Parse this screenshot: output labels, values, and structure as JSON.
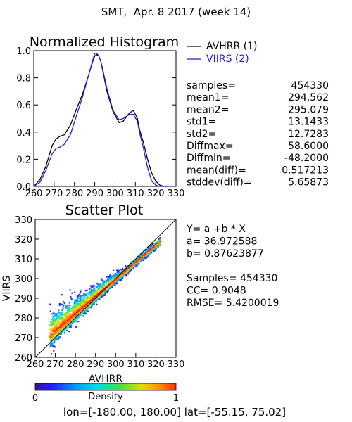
{
  "page": {
    "title": "SMT,  Apr. 8 2017 (week 14)",
    "region": "lon=[-180.00, 180.00] lat=[-55.15, 75.02]"
  },
  "chart_data": [
    {
      "type": "line",
      "title": "Normalized Histogram",
      "xlabel": "",
      "ylabel": "",
      "xlim": [
        260,
        330
      ],
      "ylim": [
        0.0,
        1.0
      ],
      "x_ticks": [
        "260",
        "270",
        "280",
        "290",
        "300",
        "310",
        "320",
        "330"
      ],
      "y_ticks": [
        "0.0",
        "0.2",
        "0.4",
        "0.6",
        "0.8",
        "1.0"
      ],
      "legend_position": "top-right",
      "series": [
        {
          "name": "AVHRR (1)",
          "color": "#000000",
          "x": [
            260,
            263,
            266,
            269,
            271,
            273,
            275,
            278,
            281,
            284,
            287,
            289,
            290,
            291,
            292,
            293,
            294,
            296,
            299,
            302,
            304,
            305,
            307,
            309,
            311,
            312,
            314,
            316,
            318,
            320,
            322,
            324,
            326
          ],
          "values": [
            0.0,
            0.05,
            0.15,
            0.3,
            0.35,
            0.37,
            0.38,
            0.45,
            0.57,
            0.68,
            0.82,
            0.92,
            0.96,
            0.97,
            0.96,
            0.92,
            0.85,
            0.7,
            0.55,
            0.47,
            0.48,
            0.5,
            0.54,
            0.56,
            0.5,
            0.42,
            0.32,
            0.2,
            0.1,
            0.04,
            0.01,
            0.0,
            0.0
          ]
        },
        {
          "name": "VIIRS (2)",
          "color": "#1f1fd0",
          "x": [
            260,
            263,
            266,
            269,
            271,
            273,
            275,
            278,
            281,
            284,
            287,
            289,
            290,
            291,
            292,
            293,
            294,
            296,
            299,
            302,
            304,
            305,
            307,
            309,
            311,
            312,
            314,
            316,
            318,
            320,
            322,
            324,
            326
          ],
          "values": [
            0.0,
            0.03,
            0.12,
            0.24,
            0.28,
            0.29,
            0.31,
            0.38,
            0.52,
            0.66,
            0.82,
            0.93,
            0.98,
            0.98,
            0.96,
            0.92,
            0.86,
            0.72,
            0.56,
            0.49,
            0.5,
            0.51,
            0.53,
            0.53,
            0.48,
            0.4,
            0.28,
            0.14,
            0.04,
            0.01,
            0.0,
            0.0,
            0.0
          ]
        }
      ],
      "stats": [
        {
          "label": "samples=",
          "value": "454330"
        },
        {
          "label": "mean1=",
          "value": "294.562"
        },
        {
          "label": "mean2=",
          "value": "295.079"
        },
        {
          "label": "std1=",
          "value": "13.1433"
        },
        {
          "label": "std2=",
          "value": "12.7283"
        },
        {
          "label": "Diffmax=",
          "value": "58.6000"
        },
        {
          "label": "Diffmin=",
          "value": "-48.2000"
        },
        {
          "label": "mean(diff)=",
          "value": "0.517213"
        },
        {
          "label": "stddev(diff)=",
          "value": "5.65873"
        }
      ]
    },
    {
      "type": "scatter",
      "title": "Scatter Plot",
      "xlabel": "AVHRR",
      "ylabel": "VIIRS",
      "xlim": [
        260,
        330
      ],
      "ylim": [
        260,
        330
      ],
      "x_ticks": [
        "260",
        "270",
        "280",
        "290",
        "300",
        "310",
        "320",
        "330"
      ],
      "y_ticks": [
        "260",
        "270",
        "280",
        "290",
        "300",
        "310",
        "320",
        "330"
      ],
      "fit_line": {
        "a": 36.972588,
        "b": 0.87623877,
        "color": "#ff0000"
      },
      "reference_line": {
        "color": "#000000"
      },
      "colorbar": {
        "label": "Density",
        "min_label": "0",
        "max_label": "1"
      },
      "annotations": [
        "Y= a +b * X",
        "a= 36.972588",
        "b= 0.87623877",
        "",
        "Samples= 454330",
        "CC=  0.9048",
        "RMSE= 5.4200019"
      ]
    }
  ]
}
